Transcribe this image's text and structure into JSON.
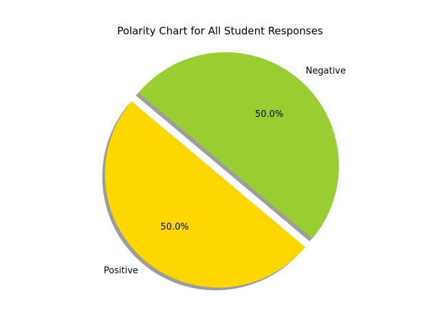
{
  "chart_data": {
    "type": "pie",
    "title": "Polarity Chart for All Student Responses",
    "categories": [
      "Positive",
      "Negative"
    ],
    "values": [
      50.0,
      50.0
    ],
    "percent_labels": [
      "50.0%",
      "50.0%"
    ],
    "colors": [
      "#FFD700",
      "#9ACD32"
    ],
    "exploded": [
      "Positive"
    ],
    "shadow": true,
    "start_angle_deg": 140
  }
}
